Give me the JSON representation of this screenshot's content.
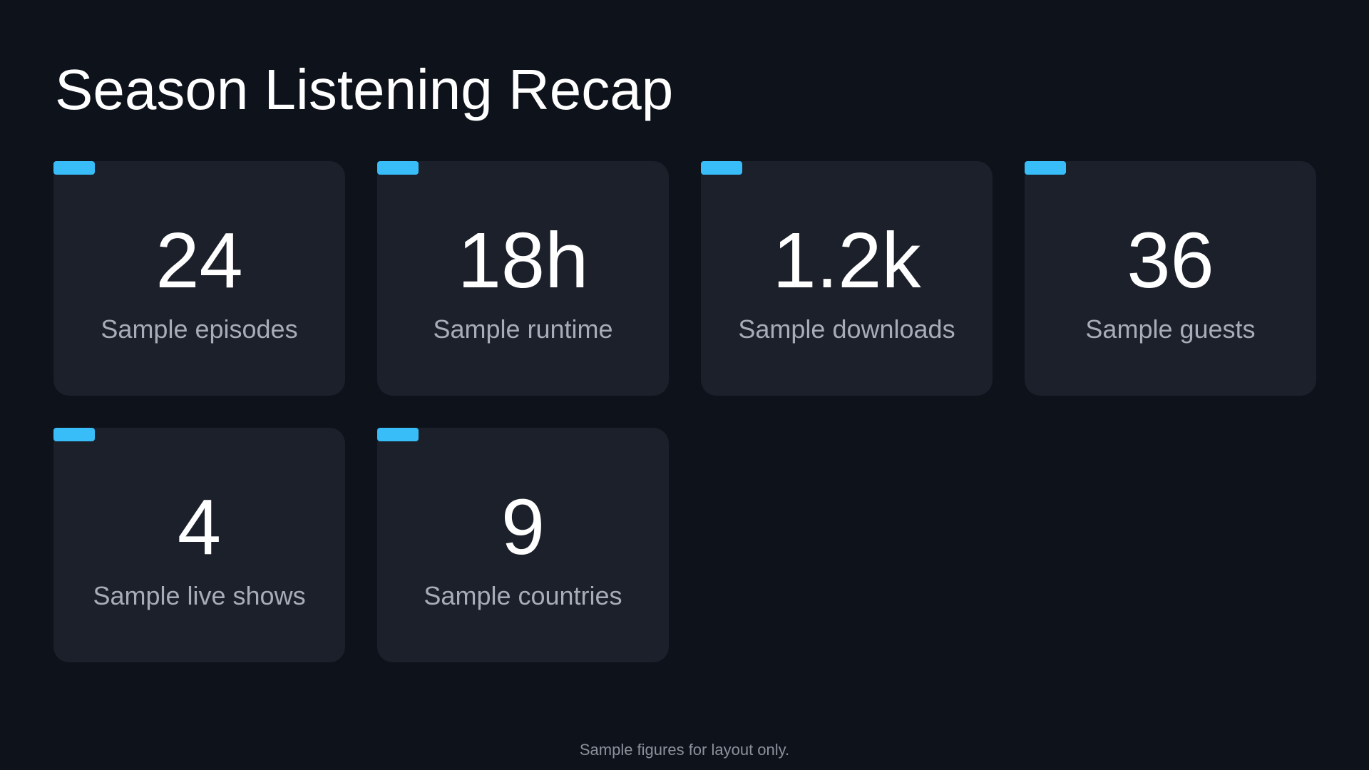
{
  "header": {
    "title": "Season Listening Recap"
  },
  "stats": [
    {
      "value": "24",
      "label": "Sample episodes"
    },
    {
      "value": "18h",
      "label": "Sample runtime"
    },
    {
      "value": "1.2k",
      "label": "Sample downloads"
    },
    {
      "value": "36",
      "label": "Sample guests"
    },
    {
      "value": "4",
      "label": "Sample live shows"
    },
    {
      "value": "9",
      "label": "Sample countries"
    }
  ],
  "footer": {
    "note": "Sample figures for layout only."
  },
  "colors": {
    "background": "#0e121b",
    "card": "#1c202a",
    "accent": "#38bdf8",
    "label": "#a7adb8"
  }
}
